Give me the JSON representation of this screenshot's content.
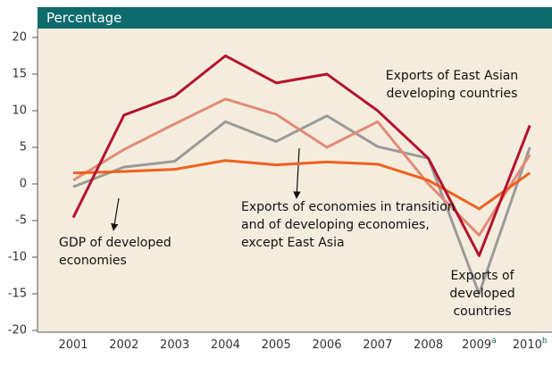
{
  "chart_data": {
    "type": "line",
    "ylabel": "Percentage",
    "categories": [
      "2001",
      "2002",
      "2003",
      "2004",
      "2005",
      "2006",
      "2007",
      "2008",
      "2009",
      "2010"
    ],
    "category_footnotes": [
      null,
      null,
      null,
      null,
      null,
      null,
      null,
      null,
      "a",
      "b"
    ],
    "ylim": [
      -20,
      20
    ],
    "yticks": [
      -20,
      -15,
      -10,
      -5,
      0,
      5,
      10,
      15,
      20
    ],
    "series": [
      {
        "name": "Exports of developed countries",
        "color": "#9a9a9a",
        "values": [
          -0.4,
          2.3,
          3.1,
          8.5,
          5.8,
          9.3,
          5.1,
          3.5,
          -15,
          5
        ]
      },
      {
        "name": "Exports of economies in transition and of developing economies, except East Asia",
        "color": "#e38a78",
        "values": [
          0.5,
          4.7,
          8.2,
          11.6,
          9.5,
          5,
          8.5,
          0,
          -7,
          4
        ]
      },
      {
        "name": "GDP of developed economies",
        "color": "#f0601f",
        "values": [
          1.5,
          1.7,
          2,
          3.2,
          2.6,
          3,
          2.7,
          0.5,
          -3.4,
          1.5
        ]
      },
      {
        "name": "Exports of East Asian developing countries",
        "color": "#b5122e",
        "values": [
          -4.6,
          9.4,
          12,
          17.5,
          13.8,
          15,
          10,
          3.5,
          -9.8,
          8
        ]
      }
    ]
  }
}
